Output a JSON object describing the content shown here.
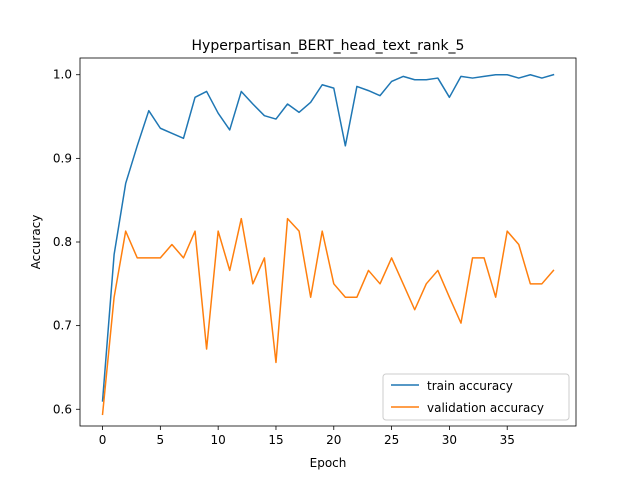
{
  "chart_data": {
    "type": "line",
    "title": "Hyperpartisan_BERT_head_text_rank_5",
    "xlabel": "Epoch",
    "ylabel": "Accuracy",
    "xlim": [
      -1.95,
      40.95
    ],
    "ylim": [
      0.58,
      1.02
    ],
    "xticks": [
      0,
      5,
      10,
      15,
      20,
      25,
      30,
      35
    ],
    "xtick_labels": [
      "0",
      "5",
      "10",
      "15",
      "20",
      "25",
      "30",
      "35"
    ],
    "yticks": [
      0.6,
      0.7,
      0.8,
      0.9,
      1.0
    ],
    "ytick_labels": [
      "0.6",
      "0.7",
      "0.8",
      "0.9",
      "1.0"
    ],
    "grid": false,
    "legend_position": "lower-right",
    "x": [
      0,
      1,
      2,
      3,
      4,
      5,
      6,
      7,
      8,
      9,
      10,
      11,
      12,
      13,
      14,
      15,
      16,
      17,
      18,
      19,
      20,
      21,
      22,
      23,
      24,
      25,
      26,
      27,
      28,
      29,
      30,
      31,
      32,
      33,
      34,
      35,
      36,
      37,
      38,
      39
    ],
    "series": [
      {
        "name": "train accuracy",
        "color": "#1f77b4",
        "values": [
          0.61,
          0.785,
          0.87,
          0.915,
          0.957,
          0.936,
          0.93,
          0.924,
          0.973,
          0.98,
          0.954,
          0.934,
          0.98,
          0.965,
          0.951,
          0.947,
          0.965,
          0.955,
          0.967,
          0.988,
          0.984,
          0.915,
          0.986,
          0.981,
          0.975,
          0.992,
          0.998,
          0.994,
          0.994,
          0.996,
          0.973,
          0.998,
          0.996,
          0.998,
          1.0,
          1.0,
          0.996,
          1.0,
          0.996,
          1.0
        ]
      },
      {
        "name": "validation accuracy",
        "color": "#ff7f0e",
        "values": [
          0.594,
          0.734,
          0.813,
          0.781,
          0.781,
          0.781,
          0.797,
          0.781,
          0.813,
          0.672,
          0.813,
          0.766,
          0.828,
          0.75,
          0.781,
          0.656,
          0.828,
          0.813,
          0.734,
          0.813,
          0.75,
          0.734,
          0.734,
          0.766,
          0.75,
          0.781,
          0.75,
          0.719,
          0.75,
          0.766,
          0.734,
          0.703,
          0.781,
          0.781,
          0.734,
          0.813,
          0.797,
          0.75,
          0.75,
          0.766
        ]
      }
    ]
  }
}
